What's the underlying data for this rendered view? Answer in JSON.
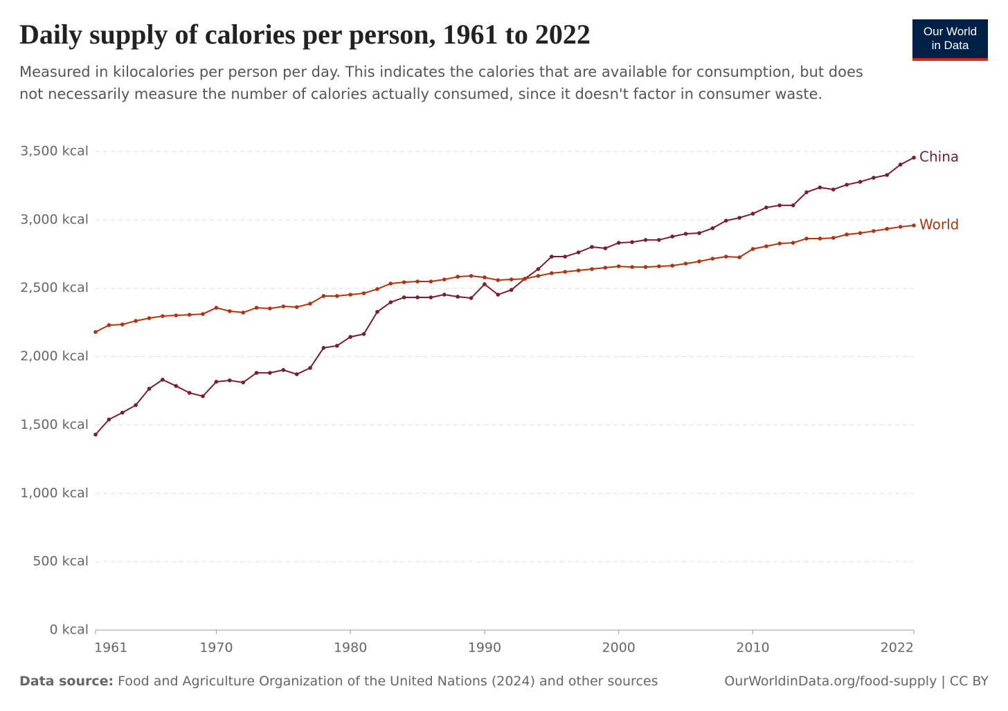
{
  "header": {
    "logo": [
      "Our World",
      "in Data"
    ]
  },
  "chart_data": {
    "type": "line",
    "title": "Daily supply of calories per person, 1961 to 2022",
    "subtitle": "Measured in kilocalories per person per day. This indicates the calories that are available for consumption, but does not necessarily measure the number of calories actually consumed, since it doesn't factor in consumer waste.",
    "x": [
      1961,
      1962,
      1963,
      1964,
      1965,
      1966,
      1967,
      1968,
      1969,
      1970,
      1971,
      1972,
      1973,
      1974,
      1975,
      1976,
      1977,
      1978,
      1979,
      1980,
      1981,
      1982,
      1983,
      1984,
      1985,
      1986,
      1987,
      1988,
      1989,
      1990,
      1991,
      1992,
      1993,
      1994,
      1995,
      1996,
      1997,
      1998,
      1999,
      2000,
      2001,
      2002,
      2003,
      2004,
      2005,
      2006,
      2007,
      2008,
      2009,
      2010,
      2011,
      2012,
      2013,
      2014,
      2015,
      2016,
      2017,
      2018,
      2019,
      2020,
      2021,
      2022
    ],
    "series": [
      {
        "name": "China",
        "color": "#7a1b2e",
        "values": [
          1430,
          1540,
          1590,
          1645,
          1765,
          1831,
          1785,
          1735,
          1710,
          1816,
          1826,
          1811,
          1881,
          1881,
          1902,
          1871,
          1917,
          2064,
          2079,
          2144,
          2165,
          2327,
          2397,
          2433,
          2433,
          2433,
          2453,
          2438,
          2428,
          2529,
          2453,
          2488,
          2569,
          2640,
          2731,
          2731,
          2762,
          2802,
          2792,
          2832,
          2837,
          2853,
          2853,
          2878,
          2898,
          2903,
          2939,
          2994,
          3015,
          3045,
          3090,
          3106,
          3106,
          3202,
          3237,
          3222,
          3257,
          3278,
          3308,
          3328,
          3404,
          3455
        ]
      },
      {
        "name": "World",
        "color": "#b3310c",
        "values": [
          2180,
          2230,
          2235,
          2261,
          2281,
          2296,
          2301,
          2306,
          2311,
          2357,
          2332,
          2322,
          2357,
          2352,
          2367,
          2362,
          2387,
          2443,
          2443,
          2453,
          2463,
          2494,
          2534,
          2544,
          2549,
          2549,
          2564,
          2584,
          2590,
          2579,
          2559,
          2564,
          2569,
          2590,
          2610,
          2620,
          2630,
          2640,
          2650,
          2660,
          2655,
          2655,
          2660,
          2665,
          2680,
          2696,
          2716,
          2731,
          2726,
          2787,
          2807,
          2827,
          2832,
          2863,
          2863,
          2868,
          2893,
          2903,
          2918,
          2934,
          2949,
          2959
        ]
      }
    ],
    "xlim": [
      1961,
      2022
    ],
    "xticks": [
      1961,
      1970,
      1980,
      1990,
      2000,
      2010,
      2022
    ],
    "ylim": [
      0,
      3500
    ],
    "yticks": [
      {
        "value": 0,
        "label": "0 kcal"
      },
      {
        "value": 500,
        "label": "500 kcal"
      },
      {
        "value": 1000,
        "label": "1,000 kcal"
      },
      {
        "value": 1500,
        "label": "1,500 kcal"
      },
      {
        "value": 2000,
        "label": "2,000 kcal"
      },
      {
        "value": 2500,
        "label": "2,500 kcal"
      },
      {
        "value": 3000,
        "label": "3,000 kcal"
      },
      {
        "value": 3500,
        "label": "3,500 kcal"
      }
    ],
    "grid": true,
    "source_label": "Data source:",
    "source_text": "Food and Agriculture Organization of the United Nations (2024) and other sources",
    "credit": "OurWorldinData.org/food-supply | CC BY"
  }
}
